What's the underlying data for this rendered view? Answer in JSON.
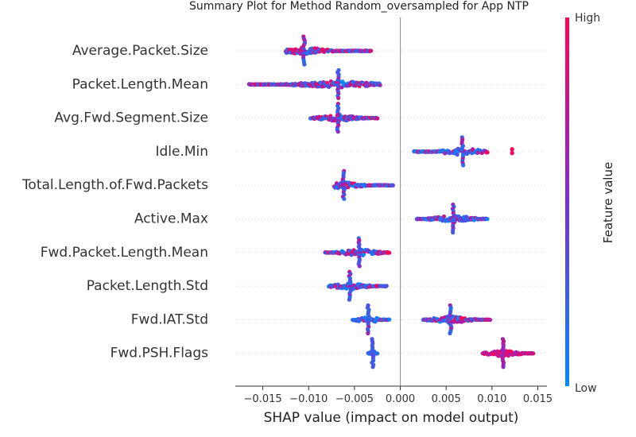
{
  "chart_data": {
    "type": "scatter",
    "subtype": "shap-beeswarm",
    "title": "Summary Plot for Method Random_oversampled for App NTP",
    "xlabel": "SHAP value (impact on model output)",
    "ylabel": "",
    "xlim": [
      -0.018,
      0.016
    ],
    "x_ticks": [
      "−0.015",
      "−0.010",
      "−0.005",
      "0.000",
      "0.005",
      "0.010",
      "0.015"
    ],
    "x_tick_values": [
      -0.015,
      -0.01,
      -0.005,
      0.0,
      0.005,
      0.01,
      0.015
    ],
    "zero_line": 0.0,
    "grid": false,
    "colorbar": {
      "label": "Feature value",
      "high_label": "High",
      "low_label": "Low",
      "high_color": "#ff0052",
      "low_color": "#008bfb"
    },
    "features": [
      {
        "name": "Average.Packet.Size",
        "segments": [
          {
            "min": -0.0125,
            "max": -0.0032,
            "mode": -0.0105,
            "mix": 0.55
          }
        ]
      },
      {
        "name": "Packet.Length.Mean",
        "segments": [
          {
            "min": -0.0165,
            "max": -0.0022,
            "mode": -0.0068,
            "mix": 0.5
          }
        ]
      },
      {
        "name": "Avg.Fwd.Segment.Size",
        "segments": [
          {
            "min": -0.0098,
            "max": -0.0025,
            "mode": -0.0068,
            "mix": 0.5
          }
        ]
      },
      {
        "name": "Idle.Min",
        "segments": [
          {
            "min": 0.0015,
            "max": 0.0095,
            "mode": 0.0068,
            "mix": 0.35
          },
          {
            "min": 0.0122,
            "max": 0.0122,
            "mode": 0.0122,
            "mix": 1.0
          }
        ]
      },
      {
        "name": "Total.Length.of.Fwd.Packets",
        "segments": [
          {
            "min": -0.0072,
            "max": -0.0008,
            "mode": -0.0062,
            "mix": 0.35
          }
        ]
      },
      {
        "name": "Active.Max",
        "segments": [
          {
            "min": 0.0018,
            "max": 0.0095,
            "mode": 0.0058,
            "mix": 0.35
          }
        ]
      },
      {
        "name": "Fwd.Packet.Length.Mean",
        "segments": [
          {
            "min": -0.0082,
            "max": -0.0012,
            "mode": -0.0045,
            "mix": 0.5
          }
        ]
      },
      {
        "name": "Packet.Length.Std",
        "segments": [
          {
            "min": -0.0078,
            "max": -0.0015,
            "mode": -0.0055,
            "mix": 0.45
          }
        ]
      },
      {
        "name": "Fwd.IAT.Std",
        "segments": [
          {
            "min": -0.0052,
            "max": -0.0012,
            "mode": -0.0035,
            "mix": 0.1
          },
          {
            "min": 0.0025,
            "max": 0.0098,
            "mode": 0.0055,
            "mix": 0.45
          }
        ]
      },
      {
        "name": "Fwd.PSH.Flags",
        "segments": [
          {
            "min": -0.0035,
            "max": -0.0025,
            "mode": -0.003,
            "mix": 0.0
          },
          {
            "min": 0.009,
            "max": 0.0145,
            "mode": 0.0112,
            "mix": 1.0
          }
        ]
      }
    ]
  }
}
